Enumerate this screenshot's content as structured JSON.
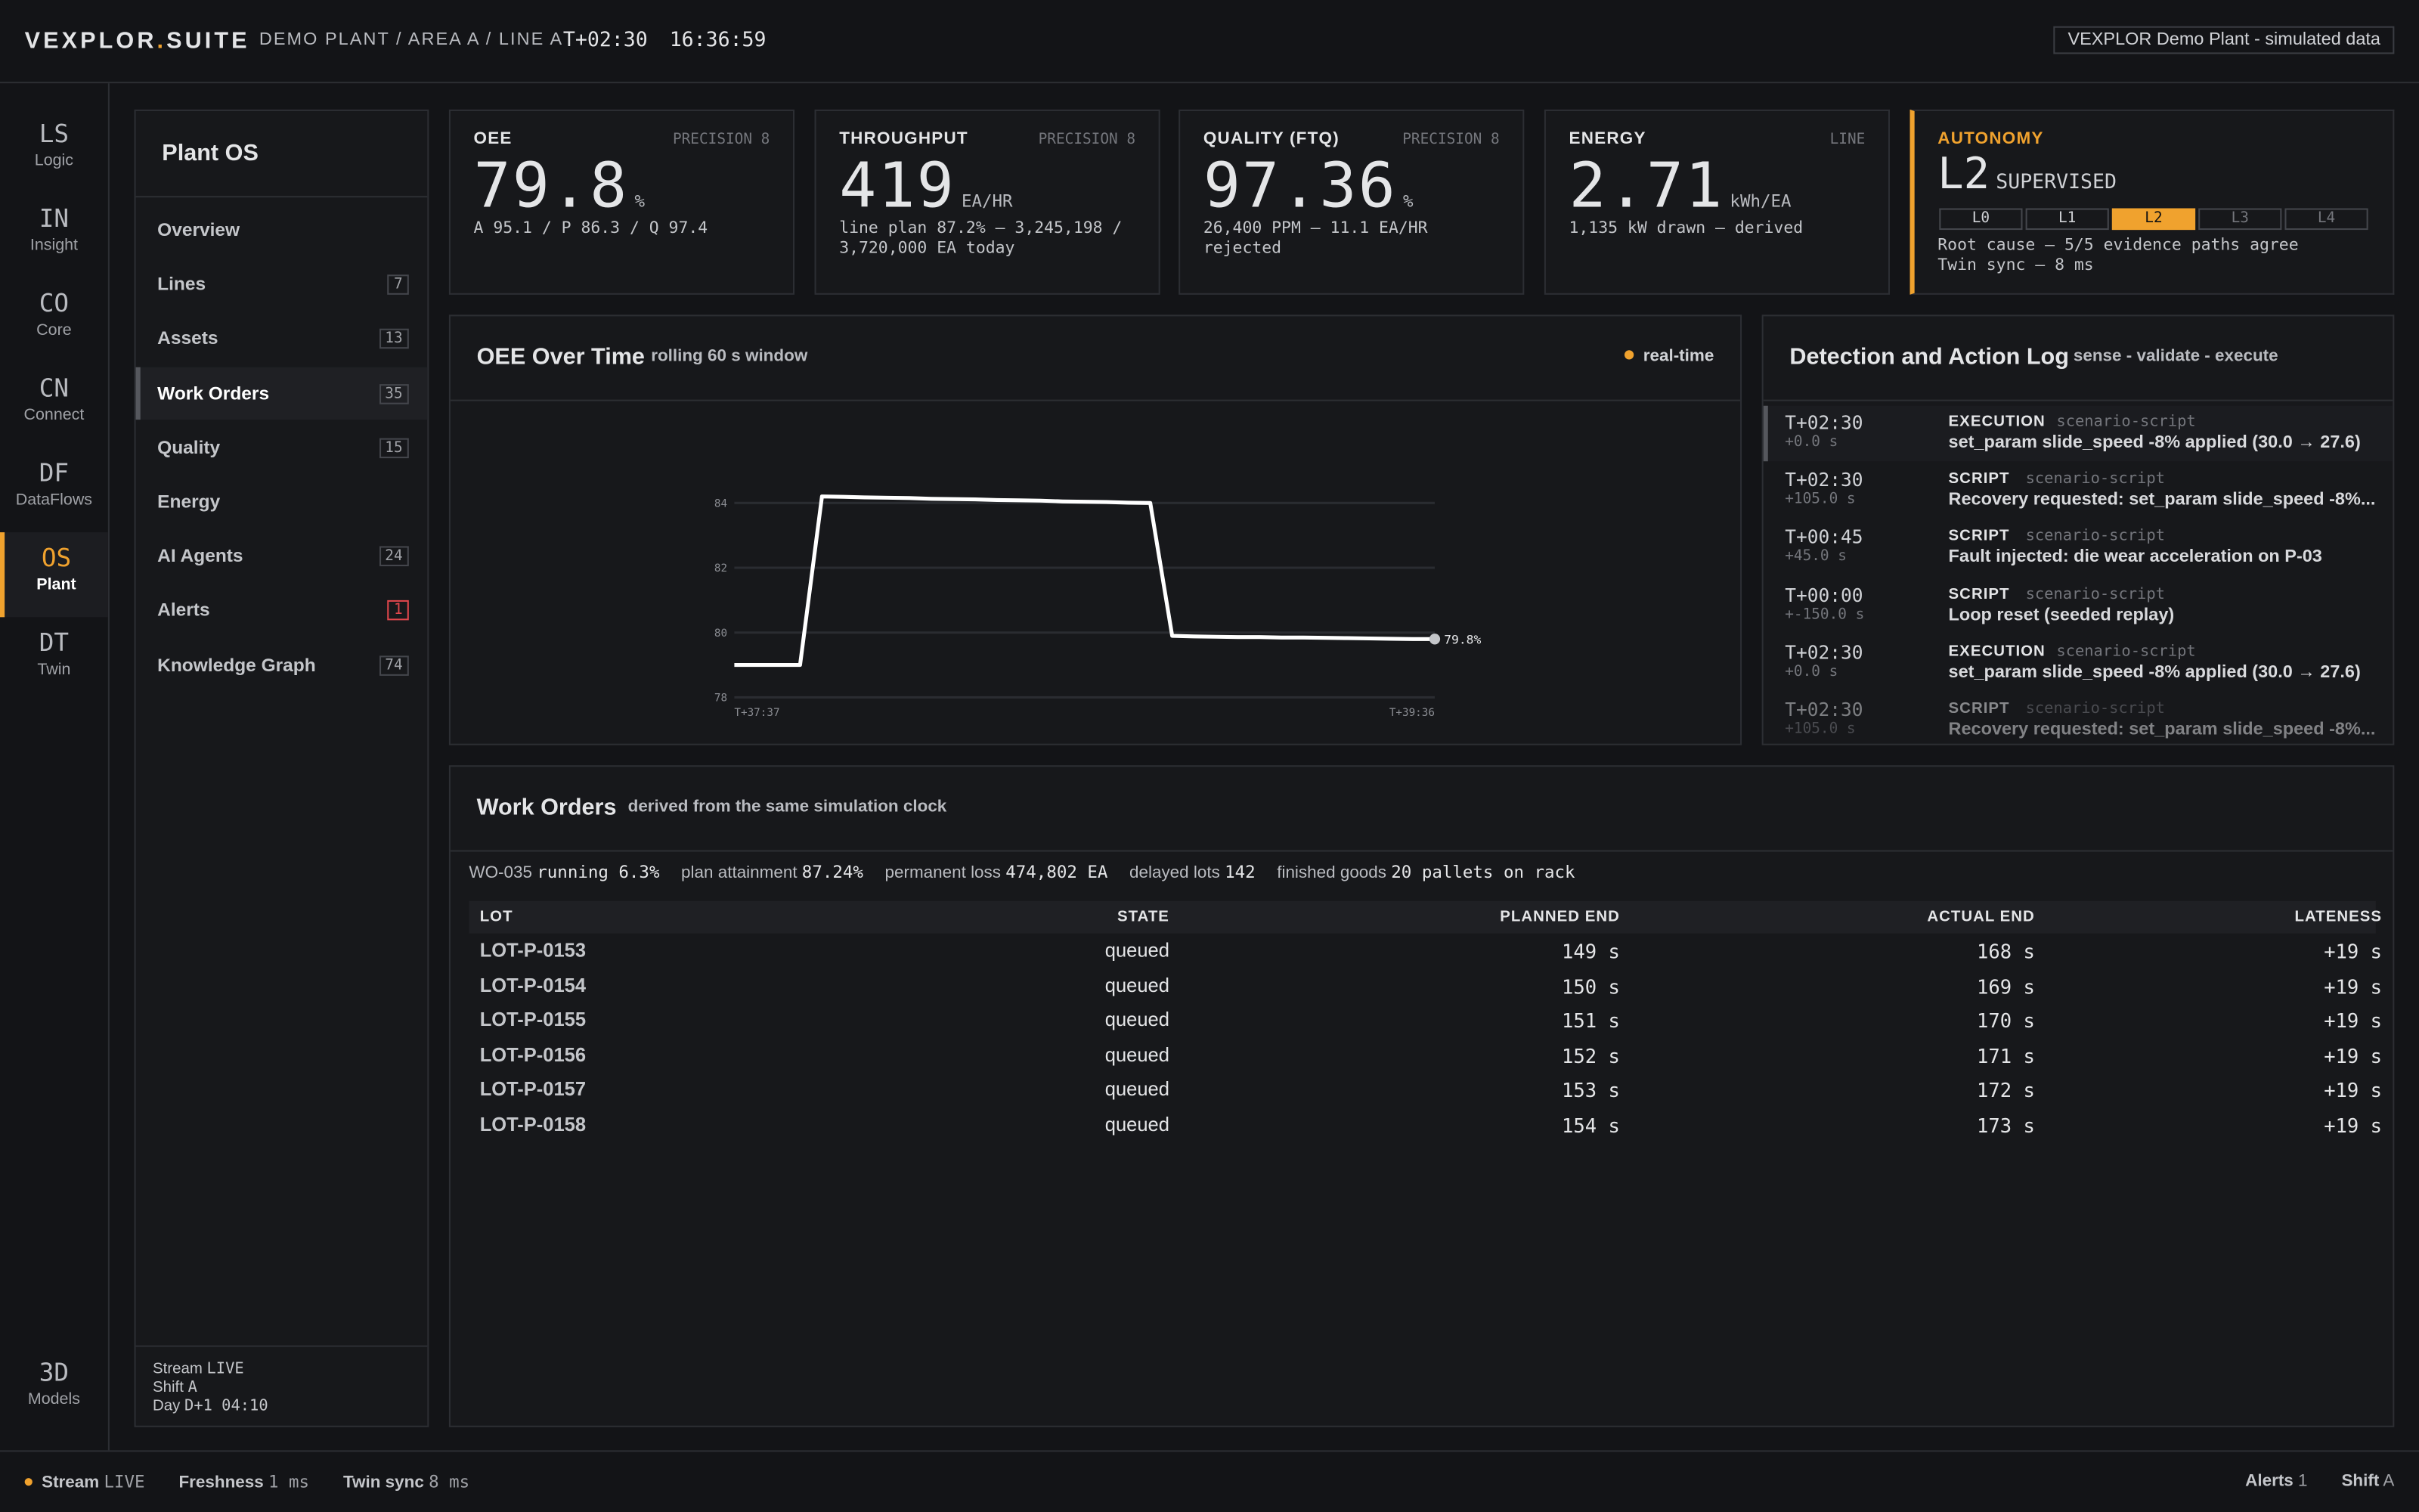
{
  "header": {
    "brand_left": "VEXPLOR",
    "brand_dot": ".",
    "brand_right": "SUITE",
    "breadcrumb": "DEMO PLANT / AREA A / LINE A",
    "clock": "T+02:30",
    "time": "16:36:59",
    "badge": "VEXPLOR Demo Plant - simulated data"
  },
  "rail": {
    "items": [
      {
        "code": "LS",
        "label": "Logic"
      },
      {
        "code": "IN",
        "label": "Insight"
      },
      {
        "code": "CO",
        "label": "Core"
      },
      {
        "code": "CN",
        "label": "Connect"
      },
      {
        "code": "DF",
        "label": "DataFlows"
      },
      {
        "code": "OS",
        "label": "Plant",
        "active": true
      },
      {
        "code": "DT",
        "label": "Twin"
      }
    ],
    "bottom": {
      "code": "3D",
      "label": "Models"
    }
  },
  "sidebar": {
    "title": "Plant OS",
    "items": [
      {
        "label": "Overview"
      },
      {
        "label": "Lines",
        "count": "7"
      },
      {
        "label": "Assets",
        "count": "13"
      },
      {
        "label": "Work Orders",
        "count": "35",
        "active": true
      },
      {
        "label": "Quality",
        "count": "15"
      },
      {
        "label": "Energy"
      },
      {
        "label": "AI Agents",
        "count": "24"
      },
      {
        "label": "Alerts",
        "count": "1",
        "alert": true
      },
      {
        "label": "Knowledge Graph",
        "count": "74"
      }
    ],
    "footer": [
      {
        "label": "Stream",
        "value": "LIVE"
      },
      {
        "label": "Shift",
        "value": "A"
      },
      {
        "label": "Day",
        "value": "D+1 04:10"
      }
    ]
  },
  "kpis": [
    {
      "label": "OEE",
      "tag": "PRECISION 8",
      "value": "79.8",
      "unit": "%",
      "sub": "A 95.1 / P 86.3 / Q 97.4"
    },
    {
      "label": "THROUGHPUT",
      "tag": "PRECISION 8",
      "value": "419",
      "unit": "EA/HR",
      "sub": "line plan 87.2% – 3,245,198 / 3,720,000 EA today"
    },
    {
      "label": "QUALITY (FTQ)",
      "tag": "PRECISION 8",
      "value": "97.36",
      "unit": "%",
      "sub": "26,400 PPM – 11.1 EA/HR rejected"
    },
    {
      "label": "ENERGY",
      "tag": "LINE",
      "value": "2.71",
      "unit": "kWh/EA",
      "sub": "1,135 kW drawn – derived"
    }
  ],
  "autonomy": {
    "label": "AUTONOMY",
    "level": "L2",
    "mode": "SUPERVISED",
    "levels": [
      "L0",
      "L1",
      "L2",
      "L3",
      "L4"
    ],
    "active": 2,
    "lines": [
      "Root cause – 5/5 evidence paths agree",
      "Twin sync – 8 ms"
    ]
  },
  "oee_panel": {
    "title": "OEE Over Time",
    "subtitle": "rolling 60 s window",
    "live": "real-time"
  },
  "oee_chart": {
    "type": "line",
    "values": [
      79.0,
      79.0,
      79.0,
      79.0,
      84.2,
      84.19,
      84.17,
      84.16,
      84.15,
      84.13,
      84.12,
      84.11,
      84.09,
      84.08,
      84.07,
      84.05,
      84.04,
      84.03,
      84.01,
      84.0,
      79.9,
      79.88,
      79.87,
      79.86,
      79.86,
      79.85,
      79.85,
      79.84,
      79.83,
      79.82,
      79.81,
      79.8,
      79.8
    ],
    "ylim": [
      78,
      84.5
    ],
    "yticks": [
      78,
      80,
      82,
      84
    ],
    "xlabels": [
      "T+37:37",
      "T+39:36"
    ],
    "last_label": "79.8%",
    "color": "#ffffff",
    "grid": true
  },
  "log": {
    "title": "Detection and Action Log",
    "subtitle": "sense - validate - execute",
    "entries": [
      {
        "time": "T+02:30",
        "delta": "+0.0 s",
        "kind": "EXECUTION",
        "src": "scenario-script",
        "msg": "set_param slide_speed -8% applied (30.0 → 27.6)"
      },
      {
        "time": "T+02:30",
        "delta": "+105.0 s",
        "kind": "SCRIPT",
        "src": "scenario-script",
        "msg": "Recovery requested: set_param slide_speed -8%..."
      },
      {
        "time": "T+00:45",
        "delta": "+45.0 s",
        "kind": "SCRIPT",
        "src": "scenario-script",
        "msg": "Fault injected: die wear acceleration on P-03"
      },
      {
        "time": "T+00:00",
        "delta": "+-150.0 s",
        "kind": "SCRIPT",
        "src": "scenario-script",
        "msg": "Loop reset (seeded replay)"
      },
      {
        "time": "T+02:30",
        "delta": "+0.0 s",
        "kind": "EXECUTION",
        "src": "scenario-script",
        "msg": "set_param slide_speed -8% applied (30.0 → 27.6)"
      },
      {
        "time": "T+02:30",
        "delta": "+105.0 s",
        "kind": "SCRIPT",
        "src": "scenario-script",
        "msg": "Recovery requested: set_param slide_speed -8%..."
      }
    ]
  },
  "work_orders": {
    "title": "Work Orders",
    "subtitle": "derived from the same simulation clock",
    "stats": [
      {
        "label": "WO-035",
        "value": "running 6.3%"
      },
      {
        "label": "plan attainment",
        "value": "87.24%"
      },
      {
        "label": "permanent loss",
        "value": "474,802 EA"
      },
      {
        "label": "delayed lots",
        "value": "142"
      },
      {
        "label": "finished goods",
        "value": "20 pallets on rack"
      }
    ],
    "table": {
      "columns": [
        "LOT",
        "STATE",
        "PLANNED END",
        "ACTUAL END",
        "LATENESS"
      ],
      "rows": [
        [
          "LOT-P-0153",
          "queued",
          "149 s",
          "168 s",
          "+19 s"
        ],
        [
          "LOT-P-0154",
          "queued",
          "150 s",
          "169 s",
          "+19 s"
        ],
        [
          "LOT-P-0155",
          "queued",
          "151 s",
          "170 s",
          "+19 s"
        ],
        [
          "LOT-P-0156",
          "queued",
          "152 s",
          "171 s",
          "+19 s"
        ],
        [
          "LOT-P-0157",
          "queued",
          "153 s",
          "172 s",
          "+19 s"
        ],
        [
          "LOT-P-0158",
          "queued",
          "154 s",
          "173 s",
          "+19 s"
        ]
      ]
    }
  },
  "status": {
    "left": [
      {
        "label": "Stream",
        "value": "LIVE"
      },
      {
        "label": "Freshness",
        "value": "1 ms"
      },
      {
        "label": "Twin sync",
        "value": "8 ms"
      }
    ],
    "right": [
      {
        "label": "Alerts",
        "value": "1"
      },
      {
        "label": "Shift",
        "value": "A"
      }
    ]
  }
}
